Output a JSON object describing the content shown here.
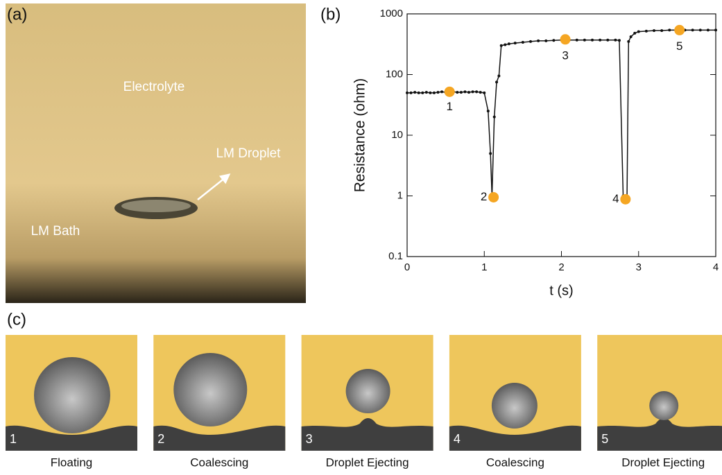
{
  "panel_labels": [
    "(a)",
    "(b)",
    "(c)"
  ],
  "photo": {
    "labels": [
      "Electrolyte",
      "LM Droplet",
      "LM Bath"
    ]
  },
  "chart_data": {
    "type": "line",
    "ylabel": "Resistance (ohm)",
    "xlabel": "t (s)",
    "color": "#111111",
    "yscale": "log",
    "x": [
      0,
      0.05,
      0.1,
      0.15,
      0.2,
      0.25,
      0.3,
      0.35,
      0.4,
      0.45,
      0.5,
      0.55,
      0.6,
      0.65,
      0.7,
      0.75,
      0.8,
      0.85,
      0.9,
      0.95,
      1.0,
      1.05,
      1.08,
      1.1,
      1.13,
      1.16,
      1.19,
      1.22,
      1.27,
      1.32,
      1.4,
      1.5,
      1.6,
      1.7,
      1.8,
      1.9,
      2.0,
      2.1,
      2.2,
      2.3,
      2.4,
      2.5,
      2.6,
      2.7,
      2.75,
      2.8,
      2.85,
      2.87,
      2.9,
      2.95,
      3.0,
      3.1,
      3.2,
      3.3,
      3.4,
      3.5,
      3.6,
      3.7,
      3.8,
      3.9,
      4.0
    ],
    "values": [
      50,
      50,
      51,
      50,
      50,
      51,
      50,
      50,
      51,
      52,
      51,
      52,
      52,
      51,
      51,
      52,
      51,
      52,
      52,
      51,
      50,
      25,
      5,
      1,
      20,
      75,
      95,
      300,
      310,
      320,
      330,
      340,
      350,
      360,
      360,
      365,
      370,
      370,
      370,
      370,
      370,
      370,
      370,
      370,
      365,
      1,
      1,
      350,
      420,
      480,
      510,
      520,
      530,
      530,
      540,
      540,
      540,
      540,
      540,
      540,
      540
    ],
    "markers": {
      "color": "#f5a623",
      "labels": [
        "1",
        "2",
        "3",
        "4",
        "5"
      ],
      "x": [
        0.55,
        1.12,
        2.05,
        2.83,
        3.53
      ],
      "values": [
        52,
        0.95,
        380,
        0.88,
        540
      ]
    },
    "xlim": [
      0,
      4
    ],
    "ylim": [
      0.1,
      1000
    ],
    "xticks": [
      0,
      1,
      2,
      3,
      4
    ],
    "yticks": [
      0.1,
      1,
      10,
      100,
      1000
    ]
  },
  "stages": [
    {
      "number": "1",
      "caption": "Floating"
    },
    {
      "number": "2",
      "caption": "Coalescing"
    },
    {
      "number": "3",
      "caption": "Droplet Ejecting"
    },
    {
      "number": "4",
      "caption": "Coalescing"
    },
    {
      "number": "5",
      "caption": "Droplet Ejecting"
    }
  ]
}
